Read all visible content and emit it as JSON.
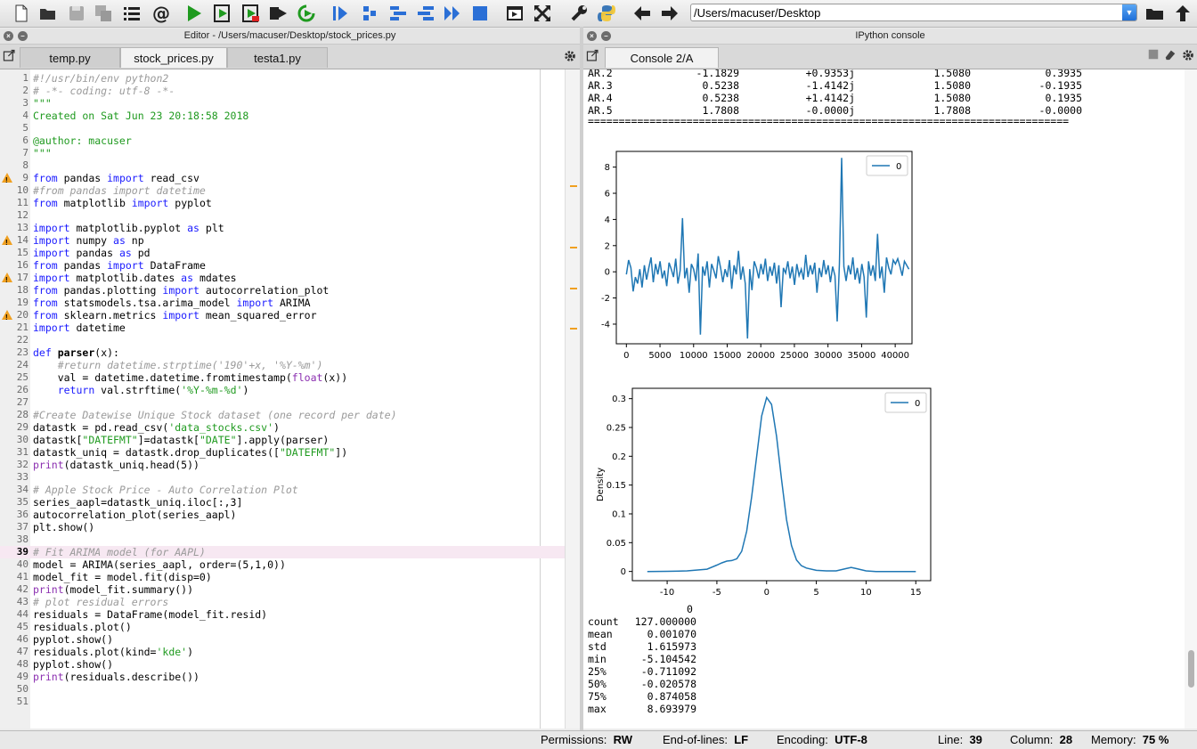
{
  "toolbar": {
    "icons": [
      "new-file-icon",
      "open-folder-icon",
      "save-icon",
      "save-all-icon",
      "list-icon",
      "at-icon",
      "run-icon",
      "run-cell-icon",
      "run-cell-advance-icon",
      "run-selection-icon",
      "rerun-icon",
      "step-icon",
      "continue-icon",
      "debug-icon",
      "indent-icon",
      "step-over-icon",
      "stop-icon",
      "maximize-pane-icon",
      "fullscreen-icon",
      "wrench-icon",
      "python-icon",
      "back-arrow-icon",
      "forward-arrow-icon"
    ],
    "path_value": "/Users/macuser/Desktop"
  },
  "editor": {
    "pane_title": "Editor - /Users/macuser/Desktop/stock_prices.py",
    "tabs": [
      "temp.py",
      "stock_prices.py",
      "testa1.py"
    ],
    "active_tab": "stock_prices.py",
    "current_line": "39",
    "lines": [
      {
        "n": "1",
        "t": "#!/usr/bin/env python2"
      },
      {
        "n": "2",
        "t": "# -*- coding: utf-8 -*-"
      },
      {
        "n": "3",
        "t": "\"\"\""
      },
      {
        "n": "4",
        "t": "Created on Sat Jun 23 20:18:58 2018"
      },
      {
        "n": "5",
        "t": ""
      },
      {
        "n": "6",
        "t": "@author: macuser"
      },
      {
        "n": "7",
        "t": "\"\"\""
      },
      {
        "n": "8",
        "t": ""
      },
      {
        "n": "9",
        "t": "from pandas import read_csv",
        "warn": true
      },
      {
        "n": "10",
        "t": "#from pandas import datetime"
      },
      {
        "n": "11",
        "t": "from matplotlib import pyplot"
      },
      {
        "n": "12",
        "t": ""
      },
      {
        "n": "13",
        "t": "import matplotlib.pyplot as plt"
      },
      {
        "n": "14",
        "t": "import numpy as np",
        "warn": true
      },
      {
        "n": "15",
        "t": "import pandas as pd"
      },
      {
        "n": "16",
        "t": "from pandas import DataFrame"
      },
      {
        "n": "17",
        "t": "import matplotlib.dates as mdates",
        "warn": true
      },
      {
        "n": "18",
        "t": "from pandas.plotting import autocorrelation_plot"
      },
      {
        "n": "19",
        "t": "from statsmodels.tsa.arima_model import ARIMA"
      },
      {
        "n": "20",
        "t": "from sklearn.metrics import mean_squared_error",
        "warn": true
      },
      {
        "n": "21",
        "t": "import datetime"
      },
      {
        "n": "22",
        "t": ""
      },
      {
        "n": "23",
        "t": "def parser(x):"
      },
      {
        "n": "24",
        "t": "    #return datetime.strptime('190'+x, '%Y-%m')"
      },
      {
        "n": "25",
        "t": "    val = datetime.datetime.fromtimestamp(float(x))"
      },
      {
        "n": "26",
        "t": "    return val.strftime('%Y-%m-%d')"
      },
      {
        "n": "27",
        "t": ""
      },
      {
        "n": "28",
        "t": "#Create Datewise Unique Stock dataset (one record per date)"
      },
      {
        "n": "29",
        "t": "datastk = pd.read_csv('data_stocks.csv')"
      },
      {
        "n": "30",
        "t": "datastk[\"DATEFMT\"]=datastk[\"DATE\"].apply(parser)"
      },
      {
        "n": "31",
        "t": "datastk_uniq = datastk.drop_duplicates([\"DATEFMT\"])"
      },
      {
        "n": "32",
        "t": "print(datastk_uniq.head(5))"
      },
      {
        "n": "33",
        "t": ""
      },
      {
        "n": "34",
        "t": "# Apple Stock Price - Auto Correlation Plot"
      },
      {
        "n": "35",
        "t": "series_aapl=datastk_uniq.iloc[:,3]"
      },
      {
        "n": "36",
        "t": "autocorrelation_plot(series_aapl)"
      },
      {
        "n": "37",
        "t": "plt.show()"
      },
      {
        "n": "38",
        "t": ""
      },
      {
        "n": "39",
        "t": "# Fit ARIMA model (for AAPL)",
        "current": true
      },
      {
        "n": "40",
        "t": "model = ARIMA(series_aapl, order=(5,1,0))"
      },
      {
        "n": "41",
        "t": "model_fit = model.fit(disp=0)"
      },
      {
        "n": "42",
        "t": "print(model_fit.summary())"
      },
      {
        "n": "43",
        "t": "# plot residual errors"
      },
      {
        "n": "44",
        "t": "residuals = DataFrame(model_fit.resid)"
      },
      {
        "n": "45",
        "t": "residuals.plot()"
      },
      {
        "n": "46",
        "t": "pyplot.show()"
      },
      {
        "n": "47",
        "t": "residuals.plot(kind='kde')"
      },
      {
        "n": "48",
        "t": "pyplot.show()"
      },
      {
        "n": "49",
        "t": "print(residuals.describe())"
      },
      {
        "n": "50",
        "t": ""
      },
      {
        "n": "51",
        "t": ""
      }
    ]
  },
  "console": {
    "pane_title": "IPython console",
    "tab": "Console 2/A",
    "ar_table": [
      [
        "AR.2",
        "-1.1829",
        "+0.9353j",
        "1.5080",
        "0.3935"
      ],
      [
        "AR.3",
        "0.5238",
        "-1.4142j",
        "1.5080",
        "-0.1935"
      ],
      [
        "AR.4",
        "0.5238",
        "+1.4142j",
        "1.5080",
        "0.1935"
      ],
      [
        "AR.5",
        "1.7808",
        "-0.0000j",
        "1.7808",
        "-0.0000"
      ]
    ],
    "separator": "==============================================================================",
    "describe_header": "0",
    "describe": [
      [
        "count",
        "127.000000"
      ],
      [
        "mean",
        "0.001070"
      ],
      [
        "std",
        "1.615973"
      ],
      [
        "min",
        "-5.104542"
      ],
      [
        "25%",
        "-0.711092"
      ],
      [
        "50%",
        "-0.020578"
      ],
      [
        "75%",
        "0.874058"
      ],
      [
        "max",
        "8.693979"
      ]
    ]
  },
  "chart_data": [
    {
      "type": "line",
      "legend": [
        "0"
      ],
      "legend_position": "top-right",
      "xlim": [
        -1500,
        42500
      ],
      "ylim": [
        -5.5,
        9.2
      ],
      "xticks": [
        0,
        5000,
        10000,
        15000,
        20000,
        25000,
        30000,
        35000,
        40000
      ],
      "yticks": [
        -4,
        -2,
        0,
        2,
        4,
        6,
        8
      ],
      "series": [
        {
          "name": "0",
          "color": "#1f77b4",
          "x": [
            0,
            334,
            667,
            1001,
            1335,
            1668,
            2002,
            2336,
            2669,
            3003,
            3337,
            3670,
            4004,
            4338,
            4671,
            5005,
            5339,
            5672,
            6006,
            6340,
            6673,
            7007,
            7341,
            7674,
            8008,
            8342,
            8675,
            9009,
            9343,
            9676,
            10010,
            10344,
            10677,
            11011,
            11345,
            11678,
            12012,
            12346,
            12679,
            13013,
            13347,
            13680,
            14014,
            14348,
            14681,
            15015,
            15349,
            15682,
            16016,
            16350,
            16683,
            17017,
            17351,
            17684,
            18018,
            18352,
            18685,
            19019,
            19353,
            19686,
            20020,
            20354,
            20687,
            21021,
            21355,
            21688,
            22022,
            22356,
            22689,
            23023,
            23357,
            23690,
            24024,
            24358,
            24691,
            25025,
            25359,
            25692,
            26026,
            26360,
            26693,
            27027,
            27361,
            27694,
            28028,
            28362,
            28695,
            29029,
            29363,
            29696,
            30030,
            30364,
            30697,
            31031,
            31365,
            31698,
            32032,
            32366,
            32699,
            33033,
            33367,
            33700,
            34034,
            34368,
            34701,
            35035,
            35369,
            35702,
            36036,
            36370,
            36703,
            37037,
            37371,
            37704,
            38038,
            38372,
            38705,
            39039,
            39373,
            39706,
            40040,
            40374,
            40707,
            41041,
            41375,
            41708,
            42042
          ],
          "y": [
            -0.2,
            0.9,
            0.3,
            -1.5,
            -0.4,
            -0.9,
            0.2,
            -1.2,
            0.5,
            -0.6,
            0.3,
            1.1,
            -0.8,
            0.6,
            -0.2,
            0.8,
            -0.5,
            0.1,
            -1.1,
            0.7,
            0.2,
            -0.4,
            1.0,
            -0.9,
            0.1,
            4.1,
            -0.5,
            0.3,
            -1.6,
            0.6,
            0.2,
            -0.7,
            1.4,
            -4.8,
            0.4,
            -0.3,
            0.8,
            -1.2,
            0.6,
            0.1,
            -0.5,
            1.2,
            0.3,
            -0.8,
            0.2,
            -0.4,
            0.9,
            -1.3,
            0.5,
            -0.2,
            1.6,
            -0.6,
            0.4,
            -0.9,
            -5.1,
            0.2,
            -1.4,
            0.8,
            0.3,
            -0.5,
            0.6,
            -0.2,
            1.0,
            -0.7,
            0.4,
            -0.3,
            0.7,
            -0.9,
            0.5,
            -2.7,
            0.3,
            -0.1,
            0.8,
            -0.5,
            0.4,
            -1.0,
            0.6,
            -0.3,
            0.2,
            -0.6,
            1.3,
            -0.4,
            0.5,
            -0.2,
            0.7,
            -1.6,
            0.3,
            -0.4,
            0.9,
            -0.2,
            0.5,
            -0.8,
            0.4,
            -0.3,
            -3.8,
            0.6,
            8.7,
            0.4,
            -0.7,
            0.5,
            -0.2,
            1.1,
            -0.6,
            0.3,
            -0.9,
            0.6,
            -0.4,
            -3.5,
            0.8,
            -0.3,
            0.5,
            -0.7,
            2.9,
            -0.5,
            0.4,
            -1.6,
            1.1,
            0.3,
            -0.2,
            0.9,
            0.6,
            1.0,
            0.4,
            -0.3,
            0.8,
            0.5,
            0.2
          ]
        }
      ]
    },
    {
      "type": "line",
      "ylabel": "Density",
      "legend": [
        "0"
      ],
      "legend_position": "top-right",
      "xlim": [
        -13.5,
        16.5
      ],
      "ylim": [
        -0.016,
        0.318
      ],
      "xticks": [
        -10,
        -5,
        0,
        5,
        10,
        15
      ],
      "yticks": [
        0.0,
        0.05,
        0.1,
        0.15,
        0.2,
        0.25,
        0.3
      ],
      "series": [
        {
          "name": "0",
          "color": "#1f77b4",
          "x": [
            -12,
            -10,
            -8,
            -6,
            -5,
            -4.5,
            -4,
            -3.5,
            -3,
            -2.5,
            -2,
            -1.5,
            -1,
            -0.5,
            0,
            0.5,
            1,
            1.5,
            2,
            2.5,
            3,
            3.5,
            4,
            5,
            6,
            7,
            8,
            8.5,
            9,
            10,
            11,
            12,
            13,
            14,
            15
          ],
          "y": [
            0,
            0.0002,
            0.001,
            0.004,
            0.011,
            0.015,
            0.018,
            0.019,
            0.022,
            0.035,
            0.07,
            0.13,
            0.2,
            0.27,
            0.302,
            0.29,
            0.235,
            0.16,
            0.09,
            0.045,
            0.02,
            0.01,
            0.006,
            0.002,
            0.001,
            0.001,
            0.005,
            0.007,
            0.005,
            0.001,
            0,
            0,
            0,
            0,
            0
          ]
        }
      ]
    }
  ],
  "status": {
    "permissions_label": "Permissions:",
    "permissions": "RW",
    "eol_label": "End-of-lines:",
    "eol": "LF",
    "encoding_label": "Encoding:",
    "encoding": "UTF-8",
    "line_label": "Line:",
    "line": "39",
    "column_label": "Column:",
    "column": "28",
    "memory_label": "Memory:",
    "memory": "75 %"
  }
}
